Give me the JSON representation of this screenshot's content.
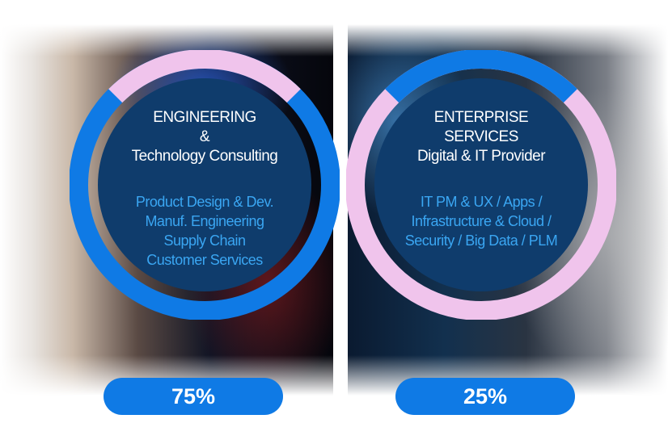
{
  "segments": [
    {
      "title_lines": [
        "ENGINEERING",
        "&",
        "Technology Consulting"
      ],
      "services": [
        "Product Design & Dev.",
        "Manuf. Engineering",
        "Supply Chain",
        "Customer Services"
      ],
      "percent_label": "75%",
      "share": 0.75
    },
    {
      "title_lines": [
        "ENTERPRISE",
        "SERVICES",
        "Digital & IT Provider"
      ],
      "services": [
        "IT PM & UX / Apps /",
        "Infrastructure & Cloud /",
        "Security / Big Data / PLM"
      ],
      "percent_label": "25%",
      "share": 0.25
    }
  ],
  "colors": {
    "ring_primary": "#0f7ae5",
    "ring_secondary": "#f0c4ec",
    "disc": "#0f3c6c",
    "service_text": "#3aa6f2",
    "pill": "#0f7ae5"
  }
}
